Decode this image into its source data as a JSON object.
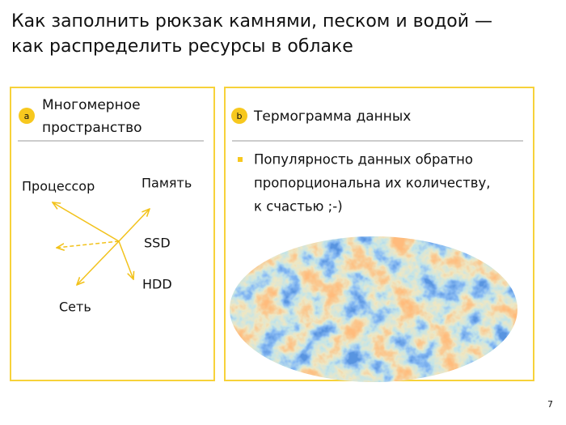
{
  "header": {
    "title": [
      "Как заполнить рюкзак камнями, песком и водой —",
      "как распределить ресурсы в облаке"
    ]
  },
  "panel_a": {
    "badge": "a",
    "title": [
      "Многомерное",
      "пространство"
    ],
    "labels": [
      "Процессор",
      "Память",
      "SSD",
      "HDD",
      "Сеть"
    ]
  },
  "panel_b": {
    "badge": "b",
    "title": "Термограмма данных",
    "bullet": [
      "Популярность данных обратно",
      "пропорциональна их количеству,",
      "к счастью ;-)"
    ]
  },
  "footer": {
    "page": "7"
  }
}
